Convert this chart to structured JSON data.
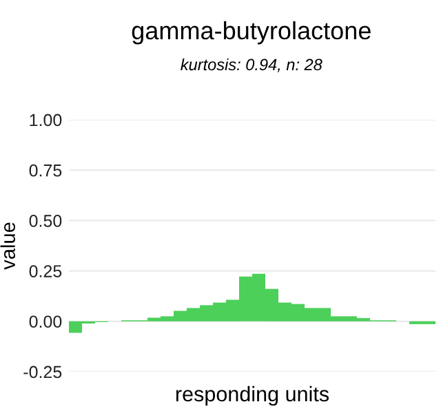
{
  "chart_data": {
    "type": "bar",
    "title": "gamma-butyrolactone",
    "subtitle": "kurtosis: 0.94, n: 28",
    "xlabel": "responding units",
    "ylabel": "value",
    "categories": [
      null,
      null,
      null,
      null,
      null,
      null,
      null,
      null,
      null,
      null,
      null,
      null,
      null,
      null,
      null,
      null,
      null,
      null,
      null,
      null,
      null,
      null,
      null,
      null,
      null,
      null,
      null,
      null
    ],
    "values": [
      -0.057,
      -0.011,
      -0.004,
      0,
      0.005,
      0.005,
      0.018,
      0.025,
      0.052,
      0.066,
      0.08,
      0.093,
      0.107,
      0.222,
      0.236,
      0.161,
      0.093,
      0.086,
      0.066,
      0.066,
      0.025,
      0.025,
      0.016,
      0.005,
      0.005,
      0,
      -0.014,
      -0.014
    ],
    "color": "#4cd05a",
    "ylim": [
      -0.25,
      1.0
    ],
    "yticks": [
      {
        "value": -0.25,
        "label": "-0.25"
      },
      {
        "value": 0,
        "label": "0.00"
      },
      {
        "value": 0.25,
        "label": "0.25"
      },
      {
        "value": 0.5,
        "label": "0.50"
      },
      {
        "value": 0.75,
        "label": "0.75"
      },
      {
        "value": 1,
        "label": "1.00"
      }
    ],
    "grid": "y",
    "legend": false
  }
}
